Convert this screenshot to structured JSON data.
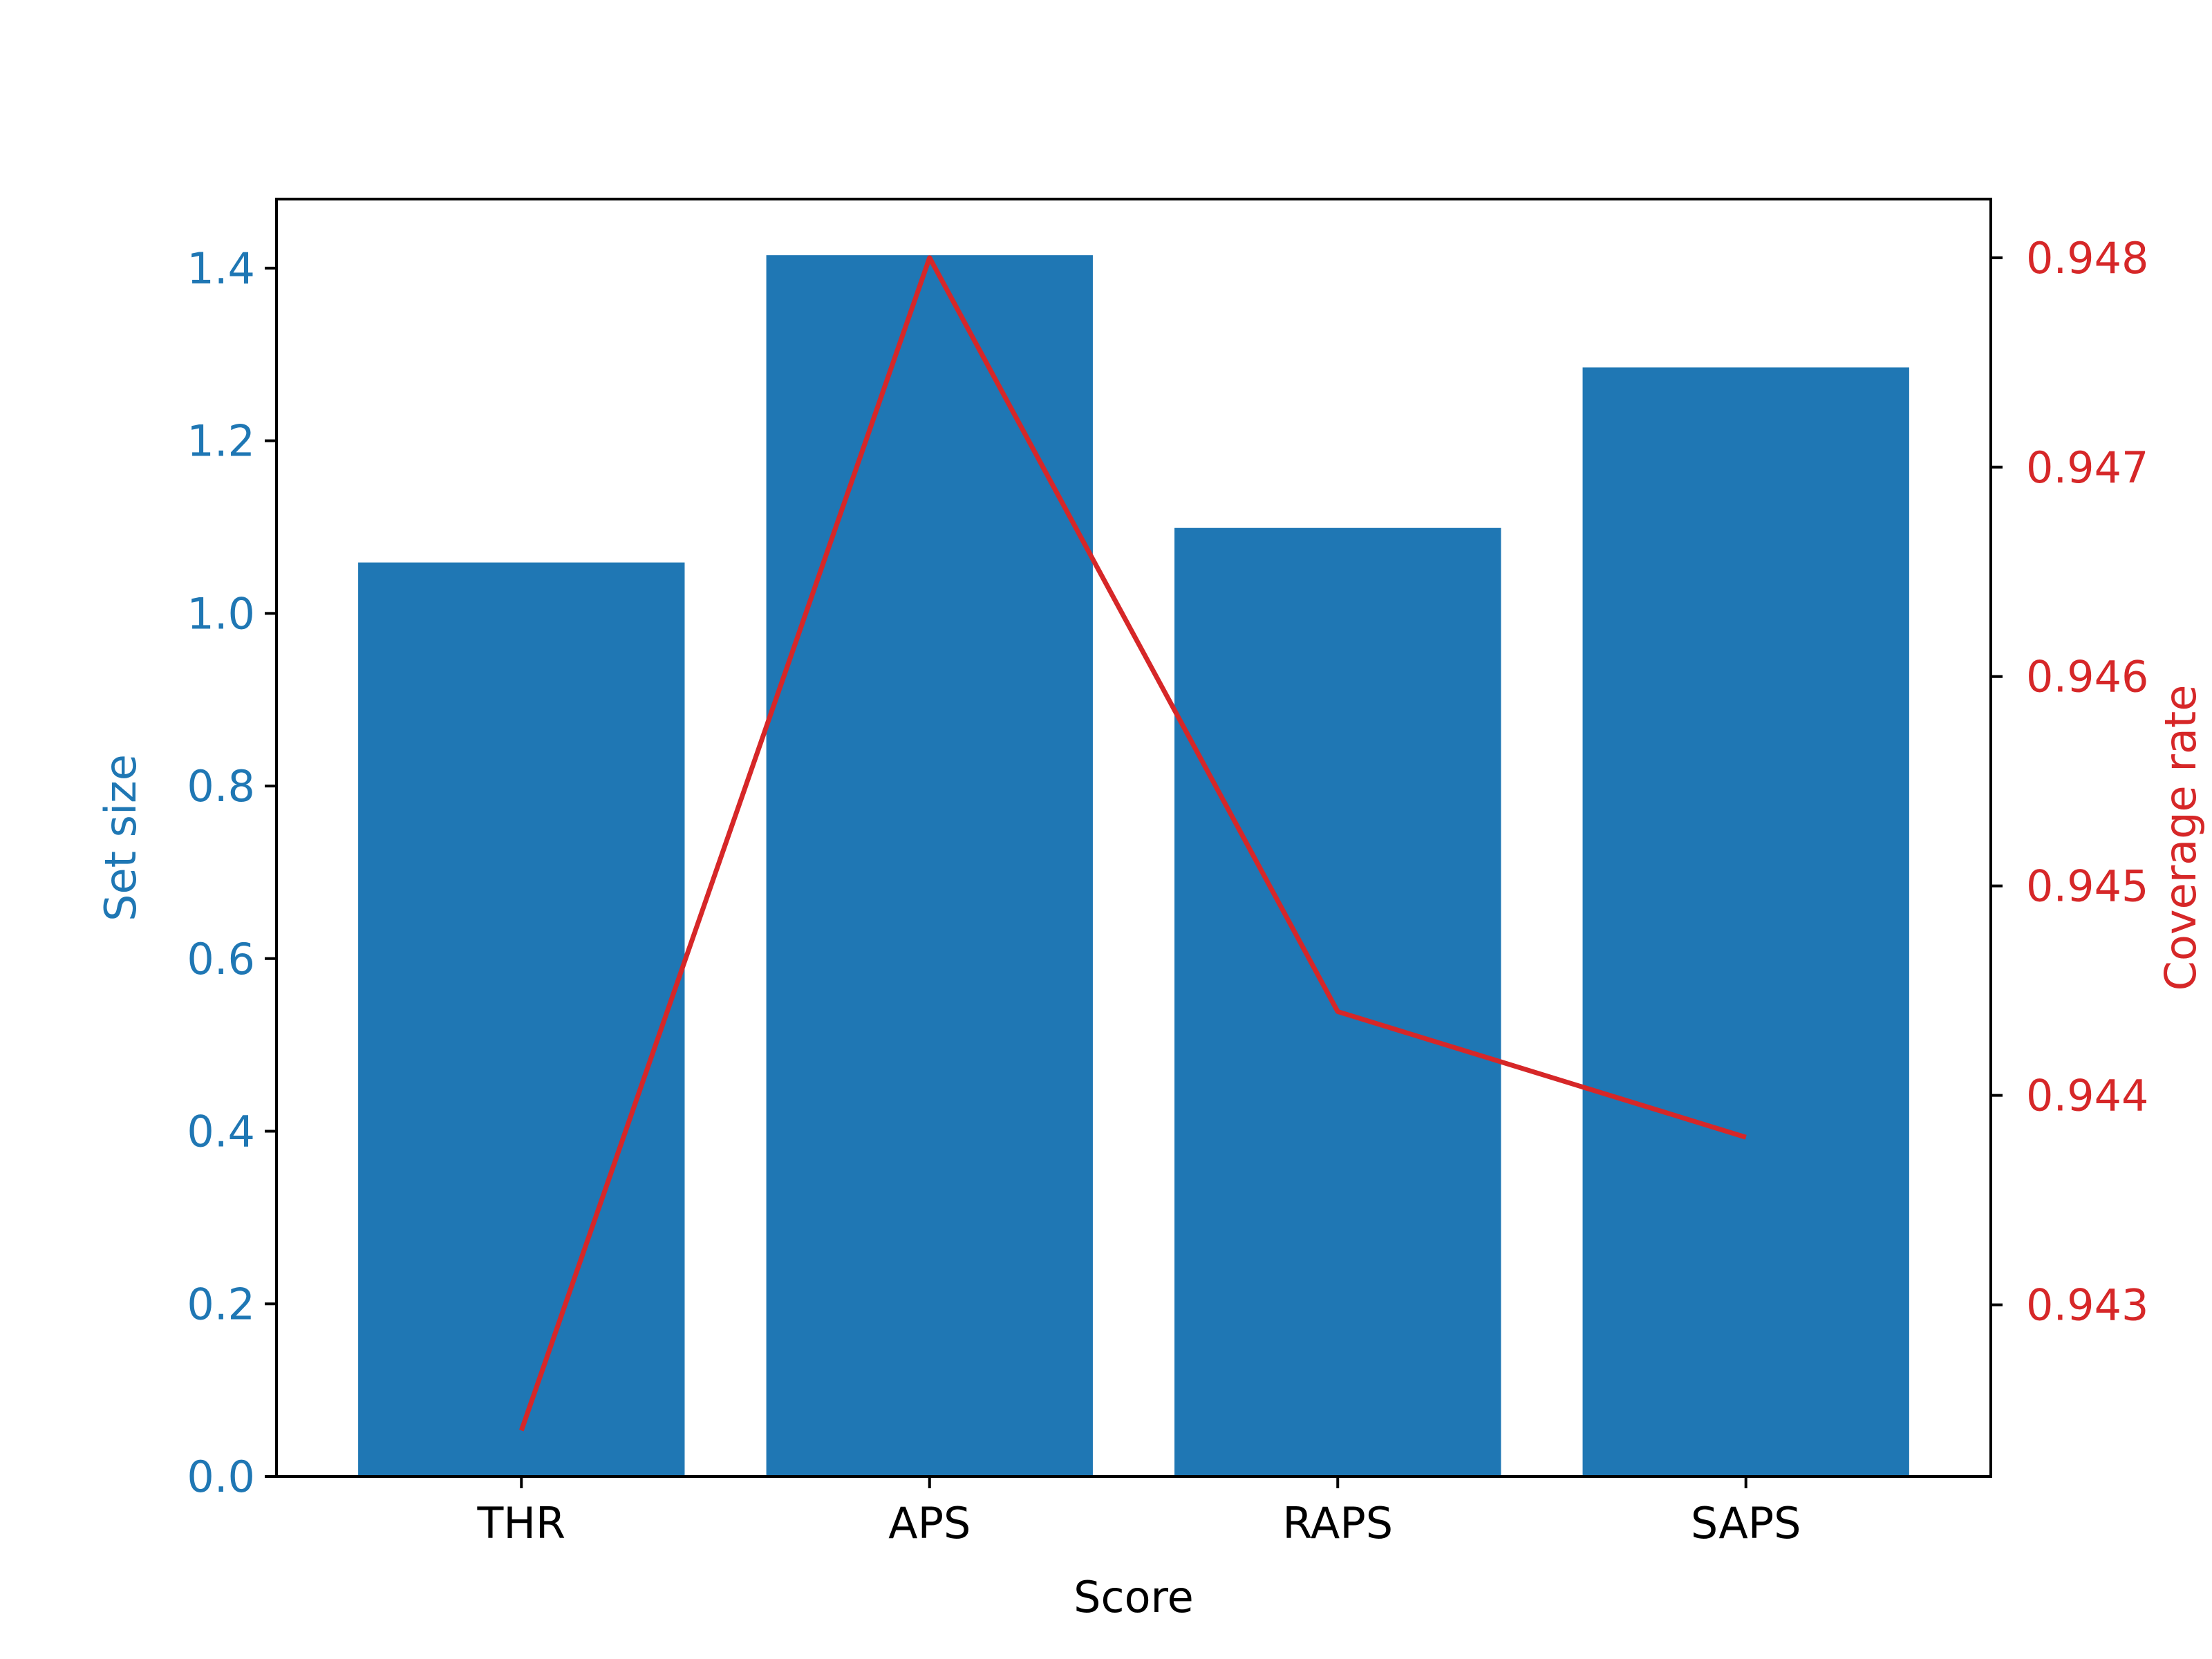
{
  "chart_data": {
    "type": "bar",
    "categories": [
      "THR",
      "APS",
      "RAPS",
      "SAPS"
    ],
    "xlabel": "Score",
    "left_axis": {
      "label": "Set size",
      "color": "#1f77b4",
      "ylim": [
        0.0,
        1.48
      ],
      "ticks": [
        0.0,
        0.2,
        0.4,
        0.6,
        0.8,
        1.0,
        1.2,
        1.4
      ],
      "tick_labels": [
        "0.0",
        "0.2",
        "0.4",
        "0.6",
        "0.8",
        "1.0",
        "1.2",
        "1.4"
      ]
    },
    "right_axis": {
      "label": "Coverage rate",
      "color": "#d62728",
      "ylim": [
        0.94218,
        0.94828
      ],
      "ticks": [
        0.943,
        0.944,
        0.945,
        0.946,
        0.947,
        0.948
      ],
      "tick_labels": [
        "0.943",
        "0.944",
        "0.945",
        "0.946",
        "0.947",
        "0.948"
      ]
    },
    "series": [
      {
        "name": "Set size",
        "type": "bar",
        "axis": "left",
        "color": "#1f77b4",
        "values": [
          1.059,
          1.415,
          1.099,
          1.285
        ]
      },
      {
        "name": "Coverage rate",
        "type": "line",
        "axis": "right",
        "color": "#d62728",
        "values": [
          0.9424,
          0.948,
          0.9444,
          0.9438
        ]
      }
    ],
    "grid": false,
    "legend": "none"
  }
}
